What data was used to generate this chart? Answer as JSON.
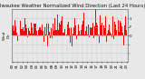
{
  "title": "Milwaukee Weather Normalized Wind Direction (Last 24 Hours)",
  "left_label": "Wind\nDir",
  "background_color": "#e8e8e8",
  "plot_bg_color": "#e8e8e8",
  "grid_color": "#aaaaaa",
  "bar_color": "#ff0000",
  "ylim": [
    -1.5,
    1.5
  ],
  "n_points": 288,
  "seed": 42,
  "title_fontsize": 3.8,
  "tick_fontsize": 2.8,
  "label_fontsize": 3.0,
  "ytick_values": [
    -1.0,
    -0.5,
    0.0,
    0.5,
    1.0
  ],
  "ytick_labels": [
    "..",
    ".",
    "0",
    "F",
    "1"
  ]
}
